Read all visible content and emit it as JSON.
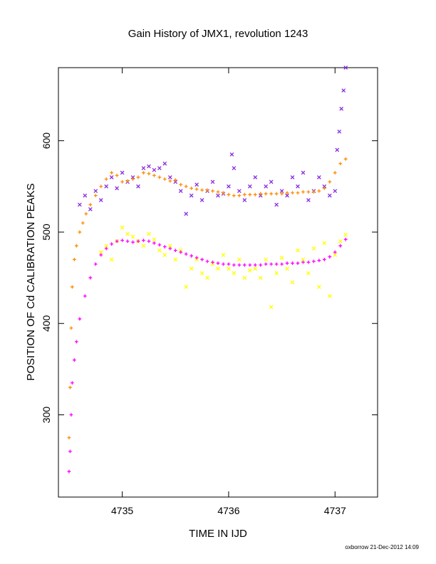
{
  "chart_data": {
    "type": "scatter",
    "title": "Gain History of JMX1, revolution 1243",
    "xlabel": "TIME IN IJD",
    "ylabel": "POSITION OF Cd CALIBRATION PEAKS",
    "xlim": [
      4734.4,
      4737.4
    ],
    "ylim": [
      210,
      680
    ],
    "x_ticks": [
      4735,
      4736,
      4737
    ],
    "y_ticks": [
      300,
      400,
      500,
      600
    ],
    "grid": false,
    "legend": "none",
    "footer": "oxborrow 21-Dec-2012 14:09",
    "colors": {
      "upper_scatter": "#8a2be2",
      "upper_smooth": "#ff8c00",
      "lower_scatter": "#ffff00",
      "lower_smooth": "#ff00ff"
    },
    "series": [
      {
        "marker": "x",
        "color": "#8a2be2",
        "x": [
          4734.6,
          4734.65,
          4734.7,
          4734.75,
          4734.8,
          4734.85,
          4734.9,
          4734.95,
          4735.0,
          4735.05,
          4735.1,
          4735.15,
          4735.2,
          4735.25,
          4735.3,
          4735.35,
          4735.4,
          4735.45,
          4735.5,
          4735.55,
          4735.6,
          4735.65,
          4735.7,
          4735.75,
          4735.8,
          4735.85,
          4735.9,
          4735.95,
          4736.0,
          4736.03,
          4736.05,
          4736.1,
          4736.15,
          4736.2,
          4736.25,
          4736.3,
          4736.35,
          4736.4,
          4736.45,
          4736.5,
          4736.55,
          4736.6,
          4736.65,
          4736.7,
          4736.75,
          4736.8,
          4736.85,
          4736.9,
          4736.95,
          4737.0,
          4737.02,
          4737.04,
          4737.06,
          4737.08,
          4737.1
        ],
        "y": [
          530,
          540,
          525,
          545,
          535,
          550,
          560,
          548,
          565,
          555,
          560,
          550,
          570,
          572,
          568,
          570,
          575,
          560,
          555,
          545,
          520,
          540,
          552,
          535,
          545,
          555,
          540,
          542,
          550,
          585,
          570,
          545,
          535,
          550,
          560,
          540,
          550,
          555,
          530,
          545,
          540,
          560,
          550,
          565,
          535,
          545,
          560,
          550,
          540,
          545,
          590,
          610,
          635,
          655,
          680
        ]
      },
      {
        "marker": "+",
        "color": "#ff8c00",
        "x": [
          4734.5,
          4734.51,
          4734.52,
          4734.53,
          4734.55,
          4734.57,
          4734.6,
          4734.63,
          4734.66,
          4734.7,
          4734.75,
          4734.8,
          4734.85,
          4734.9,
          4734.95,
          4735.0,
          4735.05,
          4735.1,
          4735.15,
          4735.2,
          4735.25,
          4735.3,
          4735.35,
          4735.4,
          4735.45,
          4735.5,
          4735.55,
          4735.6,
          4735.65,
          4735.7,
          4735.75,
          4735.8,
          4735.85,
          4735.9,
          4735.95,
          4736.0,
          4736.05,
          4736.1,
          4736.15,
          4736.2,
          4736.25,
          4736.3,
          4736.35,
          4736.4,
          4736.45,
          4736.5,
          4736.55,
          4736.6,
          4736.65,
          4736.7,
          4736.75,
          4736.8,
          4736.85,
          4736.9,
          4736.95,
          4737.0,
          4737.05,
          4737.1
        ],
        "y": [
          275,
          330,
          395,
          440,
          470,
          485,
          500,
          510,
          520,
          530,
          540,
          550,
          558,
          565,
          562,
          555,
          556,
          558,
          560,
          565,
          564,
          562,
          560,
          558,
          556,
          557,
          552,
          550,
          548,
          547,
          546,
          546,
          545,
          544,
          543,
          541,
          540,
          540,
          541,
          541,
          541,
          542,
          542,
          542,
          542,
          542,
          543,
          543,
          543,
          544,
          544,
          544,
          545,
          548,
          555,
          565,
          575,
          580
        ]
      },
      {
        "marker": "x",
        "color": "#ffff00",
        "x": [
          4734.8,
          4734.85,
          4734.9,
          4734.95,
          4735.0,
          4735.05,
          4735.1,
          4735.15,
          4735.2,
          4735.25,
          4735.3,
          4735.35,
          4735.4,
          4735.45,
          4735.5,
          4735.55,
          4735.6,
          4735.65,
          4735.7,
          4735.75,
          4735.8,
          4735.85,
          4735.9,
          4735.95,
          4736.0,
          4736.05,
          4736.1,
          4736.15,
          4736.2,
          4736.25,
          4736.3,
          4736.35,
          4736.4,
          4736.45,
          4736.5,
          4736.55,
          4736.6,
          4736.65,
          4736.7,
          4736.75,
          4736.8,
          4736.85,
          4736.9,
          4736.95,
          4737.0,
          4737.05,
          4737.1
        ],
        "y": [
          478,
          485,
          470,
          490,
          505,
          498,
          495,
          490,
          485,
          498,
          492,
          480,
          475,
          485,
          470,
          480,
          440,
          460,
          470,
          455,
          450,
          465,
          460,
          475,
          460,
          455,
          470,
          450,
          458,
          460,
          450,
          470,
          418,
          455,
          472,
          460,
          445,
          480,
          470,
          455,
          482,
          440,
          488,
          430,
          475,
          490,
          497
        ]
      },
      {
        "marker": "+",
        "color": "#ff00ff",
        "x": [
          4734.5,
          4734.51,
          4734.52,
          4734.53,
          4734.55,
          4734.57,
          4734.6,
          4734.65,
          4734.7,
          4734.75,
          4734.8,
          4734.85,
          4734.9,
          4734.95,
          4735.0,
          4735.05,
          4735.1,
          4735.15,
          4735.2,
          4735.25,
          4735.3,
          4735.35,
          4735.4,
          4735.45,
          4735.5,
          4735.55,
          4735.6,
          4735.65,
          4735.7,
          4735.75,
          4735.8,
          4735.85,
          4735.9,
          4735.95,
          4736.0,
          4736.05,
          4736.1,
          4736.15,
          4736.2,
          4736.25,
          4736.3,
          4736.35,
          4736.4,
          4736.45,
          4736.5,
          4736.55,
          4736.6,
          4736.65,
          4736.7,
          4736.75,
          4736.8,
          4736.85,
          4736.9,
          4736.95,
          4737.0,
          4737.05,
          4737.1
        ],
        "y": [
          238,
          260,
          300,
          335,
          360,
          380,
          405,
          430,
          450,
          465,
          475,
          482,
          487,
          490,
          491,
          490,
          489,
          490,
          491,
          490,
          488,
          486,
          484,
          482,
          480,
          478,
          476,
          474,
          472,
          470,
          468,
          467,
          466,
          465,
          465,
          464,
          464,
          464,
          464,
          464,
          464,
          465,
          465,
          465,
          465,
          466,
          466,
          466,
          467,
          467,
          468,
          469,
          470,
          473,
          478,
          485,
          492
        ]
      }
    ]
  }
}
